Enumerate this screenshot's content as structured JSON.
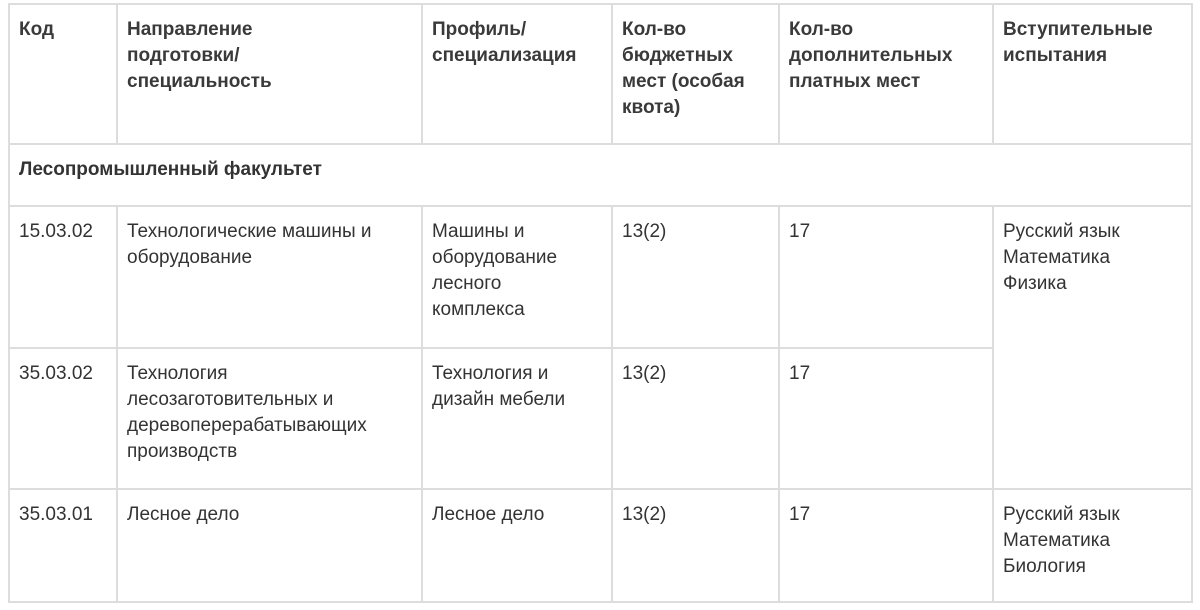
{
  "headers": [
    "Код",
    "Направление подготовки/ специальность",
    "Профиль/ специализация",
    "Кол-во бюджетных мест (особая квота)",
    "Кол-во дополнительных платных мест",
    "Вступительные испытания"
  ],
  "faculty": "Лесопромышленный факультет",
  "rows": [
    {
      "code": "15.03.02",
      "direction": "Технологические машины и оборудование",
      "profile": "Машины и оборудование лесного комплекса",
      "budget": "13(2)",
      "paid": "17"
    },
    {
      "code": "35.03.02",
      "direction": "Технология лесозаготовительных и деревоперерабатывающих производств",
      "profile": "Технология и дизайн мебели",
      "budget": "13(2)",
      "paid": "17"
    },
    {
      "code": "35.03.01",
      "direction": "Лесное дело",
      "profile": "Лесное дело",
      "budget": "13(2)",
      "paid": "17"
    }
  ],
  "exams": [
    [
      "Русский язык",
      "Математика",
      "Физика"
    ],
    [
      "Русский язык",
      "Математика",
      "Биология"
    ]
  ]
}
